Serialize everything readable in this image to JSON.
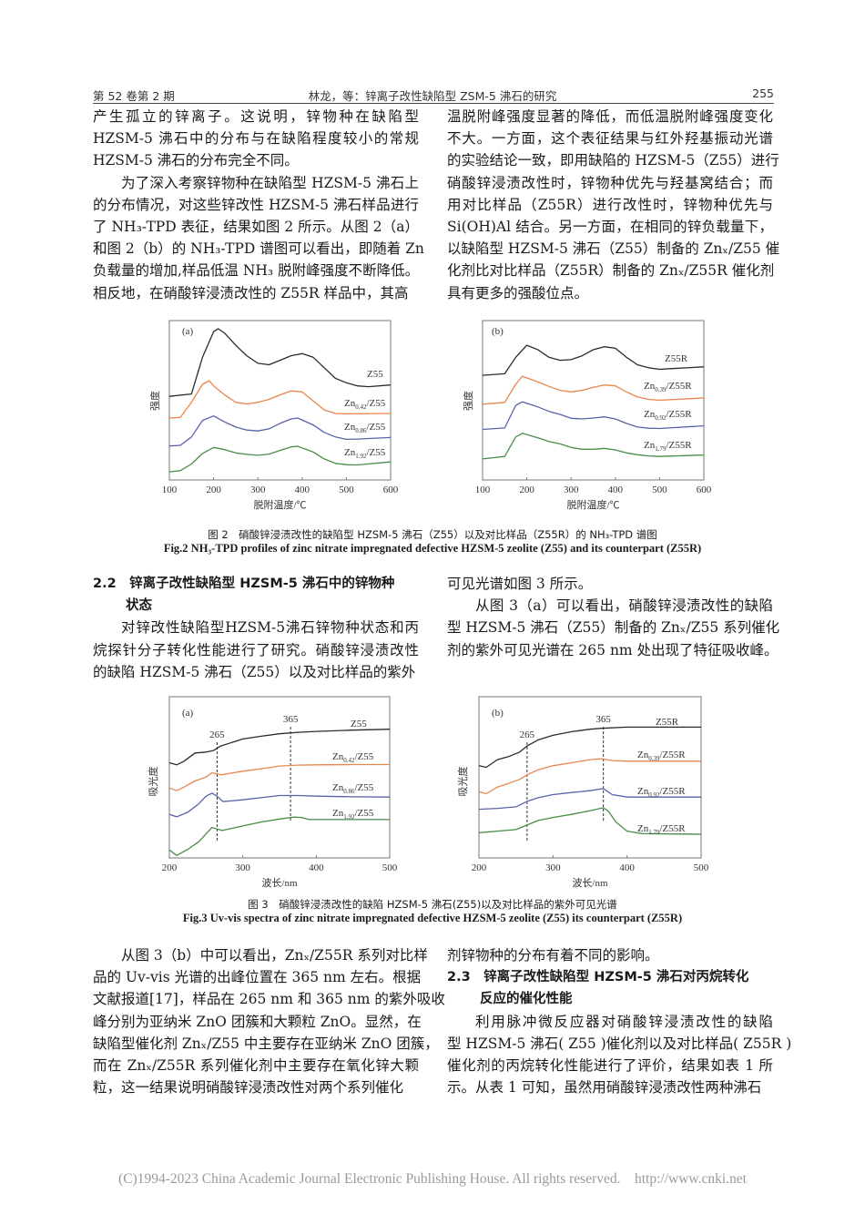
{
  "header": {
    "left": "第 52 卷第 2 期",
    "center": "林龙，等：锌离子改性缺陷型 ZSM-5 沸石的研究",
    "right": "255"
  },
  "blocks": {
    "left_top": [
      {
        "continued": true,
        "lines": [
          "产生孤立的锌离子。这说明，锌物种在缺陷型",
          "HZSM-5  沸石中的分布与在缺陷程度较小的常规",
          "HZSM-5 沸石的分布完全不同。"
        ]
      },
      {
        "continued": false,
        "lines": [
          "为了深入考察锌物种在缺陷型 HZSM-5 沸石上",
          "的分布情况，对这些锌改性 HZSM-5 沸石样品进行",
          "了 NH₃-TPD 表征，结果如图 2 所示。从图 2（a）",
          "和图 2（b）的 NH₃-TPD 谱图可以看出，即随着 Zn",
          "负载量的增加,样品低温 NH₃ 脱附峰强度不断降低。",
          "相反地，在硝酸锌浸渍改性的 Z55R 样品中，其高"
        ]
      }
    ],
    "right_top": [
      {
        "continued": true,
        "lines": [
          "温脱附峰强度显著的降低，而低温脱附峰强度变化",
          "不大。一方面，这个表征结果与红外羟基振动光谱",
          "的实验结论一致，即用缺陷的 HZSM-5（Z55）进行",
          "硝酸锌浸渍改性时，锌物种优先与羟基窝结合；而",
          "用对比样品（Z55R）进行改性时，锌物种优先与",
          "Si(OH)Al 结合。另一方面，在相同的锌负载量下，",
          "以缺陷型 HZSM-5 沸石（Z55）制备的 Znₓ/Z55 催",
          "化剂比对比样品（Z55R）制备的 Znₓ/Z55R 催化剂",
          "具有更多的强酸位点。"
        ]
      }
    ],
    "left_mid": [
      {
        "heading": [
          "2.2　锌离子改性缺陷型 HZSM-5 沸石中的锌物种",
          "状态"
        ]
      },
      {
        "continued": false,
        "lines": [
          "对锌改性缺陷型HZSM-5沸石锌物种状态和丙",
          "烷探针分子转化性能进行了研究。硝酸锌浸渍改性",
          "的缺陷 HZSM-5 沸石（Z55）以及对比样品的紫外"
        ]
      }
    ],
    "right_mid": [
      {
        "continued": true,
        "lines": [
          "可见光谱如图 3 所示。"
        ]
      },
      {
        "continued": false,
        "lines": [
          "从图 3（a）可以看出，硝酸锌浸渍改性的缺陷",
          "型 HZSM-5 沸石（Z55）制备的 Znₓ/Z55 系列催化",
          "剂的紫外可见光谱在 265 nm 处出现了特征吸收峰。"
        ]
      }
    ],
    "left_bottom": [
      {
        "continued": false,
        "lines": [
          "从图 3（b）中可以看出，Znₓ/Z55R 系列对比样",
          "品的 Uv-vis 光谱的出峰位置在 365  nm 左右。根据",
          "文献报道[17]，样品在 265 nm 和 365 nm 的紫外吸收",
          "峰分别为亚纳米 ZnO 团簇和大颗粒 ZnO。显然，在",
          "缺陷型催化剂 Znₓ/Z55 中主要存在亚纳米 ZnO 团簇，",
          "而在  Znₓ/Z55R  系列催化剂中主要存在氧化锌大颗",
          "粒，这一结果说明硝酸锌浸渍改性对两个系列催化"
        ]
      }
    ],
    "right_bottom": [
      {
        "continued": true,
        "lines": [
          "剂锌物种的分布有着不同的影响。"
        ]
      },
      {
        "heading": [
          "2.3　锌离子改性缺陷型 HZSM-5 沸石对丙烷转化",
          "反应的催化性能"
        ]
      },
      {
        "continued": false,
        "lines": [
          "利用脉冲微反应器对硝酸锌浸渍改性的缺陷",
          "型 HZSM-5 沸石( Z55 )催化剂以及对比样品( Z55R )",
          "催化剂的丙烷转化性能进行了评价，结果如表 1 所",
          "示。从表 1 可知，虽然用硝酸锌浸渍改性两种沸石"
        ]
      }
    ]
  },
  "captions": {
    "fig2_cn": "图 2　硝酸锌浸渍改性的缺陷型 HZSM-5 沸石（Z55）以及对比样品（Z55R）的 NH₃-TPD 谱图",
    "fig2_en": "Fig.2 NH₃-TPD profiles of zinc nitrate impregnated defective HZSM-5 zeolite (Z55) and its counterpart (Z55R)",
    "fig3_cn": "图 3　硝酸锌浸渍改性的缺陷 HZSM-5 沸石(Z55)以及对比样品的紫外可见光谱",
    "fig3_en": "Fig.3 Uv-vis spectra of zinc nitrate impregnated defective HZSM-5 zeolite (Z55) its counterpart (Z55R)"
  },
  "chart_data": [
    {
      "id": "fig2a",
      "type": "line",
      "panel": "(a)",
      "xlabel": "脱附温度/℃",
      "ylabel": "强度",
      "xlim": [
        100,
        600
      ],
      "ylim": [
        0,
        530
      ],
      "xticks": [
        "100",
        "200",
        "300",
        "400",
        "500",
        "600"
      ],
      "grid": false,
      "series": [
        {
          "name": "Z55",
          "label": {
            "base": "Z55",
            "sub": "",
            "rest": ""
          },
          "color": "#2b2b2b",
          "x": [
            100,
            150,
            175,
            200,
            210,
            225,
            250,
            275,
            300,
            325,
            350,
            375,
            400,
            425,
            450,
            475,
            500,
            525,
            550,
            600
          ],
          "y": [
            278,
            286,
            408,
            493,
            503,
            488,
            448,
            413,
            388,
            383,
            398,
            413,
            420,
            408,
            373,
            338,
            323,
            313,
            310,
            316
          ]
        },
        {
          "name": "Zn0.42/Z55",
          "label": {
            "base": "Zn",
            "sub": "0.42",
            "rest": "/Z55"
          },
          "color": "#e8864c",
          "x": [
            100,
            125,
            150,
            175,
            190,
            200,
            225,
            250,
            275,
            300,
            325,
            350,
            375,
            400,
            425,
            450,
            475,
            500,
            600
          ],
          "y": [
            206,
            208,
            258,
            318,
            330,
            313,
            283,
            258,
            253,
            258,
            268,
            283,
            296,
            293,
            263,
            233,
            221,
            220,
            221
          ]
        },
        {
          "name": "Zn0.86/Z55",
          "label": {
            "base": "Zn",
            "sub": "0.86",
            "rest": "/Z55"
          },
          "color": "#5862a8",
          "x": [
            100,
            125,
            150,
            175,
            200,
            225,
            250,
            275,
            300,
            325,
            350,
            375,
            390,
            425,
            450,
            475,
            500,
            525,
            600
          ],
          "y": [
            113,
            115,
            143,
            198,
            213,
            193,
            176,
            166,
            163,
            170,
            188,
            203,
            206,
            183,
            158,
            143,
            135,
            136,
            141
          ]
        },
        {
          "name": "Zn1.92/Z55",
          "label": {
            "base": "Zn",
            "sub": "1.92",
            "rest": "/Z55"
          },
          "color": "#4a8c4a",
          "x": [
            100,
            125,
            150,
            175,
            200,
            225,
            250,
            275,
            300,
            325,
            350,
            375,
            390,
            425,
            450,
            475,
            500,
            525,
            600
          ],
          "y": [
            27,
            31,
            53,
            88,
            108,
            101,
            90,
            85,
            82,
            86,
            98,
            110,
            112,
            93,
            70,
            55,
            51,
            50,
            60
          ]
        }
      ]
    },
    {
      "id": "fig2b",
      "type": "line",
      "panel": "(b)",
      "xlabel": "脱附温度/℃",
      "ylabel": "强度",
      "xlim": [
        100,
        600
      ],
      "ylim": [
        0,
        530
      ],
      "xticks": [
        "100",
        "200",
        "300",
        "400",
        "500",
        "600"
      ],
      "grid": false,
      "series": [
        {
          "name": "Z55R",
          "label": {
            "base": "Z55R",
            "sub": "",
            "rest": ""
          },
          "color": "#2b2b2b",
          "x": [
            100,
            150,
            175,
            200,
            225,
            250,
            275,
            300,
            325,
            350,
            375,
            400,
            425,
            450,
            475,
            500,
            525,
            600
          ],
          "y": [
            348,
            353,
            408,
            448,
            433,
            408,
            398,
            400,
            413,
            433,
            443,
            438,
            408,
            383,
            373,
            368,
            370,
            376
          ]
        },
        {
          "name": "Zn0.39/Z55R",
          "label": {
            "base": "Zn",
            "sub": "0.39",
            "rest": "/Z55R"
          },
          "color": "#e8864c",
          "x": [
            100,
            150,
            175,
            190,
            225,
            250,
            275,
            300,
            325,
            350,
            375,
            400,
            425,
            450,
            475,
            500,
            600
          ],
          "y": [
            252,
            258,
            318,
            345,
            326,
            311,
            298,
            293,
            298,
            308,
            316,
            313,
            293,
            276,
            268,
            265,
            273
          ]
        },
        {
          "name": "Zn0.92/Z55R",
          "label": {
            "base": "Zn",
            "sub": "0.92",
            "rest": "/Z55R"
          },
          "color": "#5862a8",
          "x": [
            100,
            150,
            175,
            190,
            225,
            250,
            275,
            300,
            325,
            350,
            375,
            400,
            425,
            450,
            475,
            500,
            600
          ],
          "y": [
            168,
            173,
            248,
            260,
            243,
            228,
            218,
            205,
            203,
            206,
            210,
            203,
            188,
            176,
            172,
            171,
            180
          ]
        },
        {
          "name": "Zn1.79/Z55R",
          "label": {
            "base": "Zn",
            "sub": "1.79",
            "rest": "/Z55R"
          },
          "color": "#4a8c4a",
          "x": [
            100,
            150,
            175,
            190,
            225,
            250,
            275,
            300,
            325,
            350,
            375,
            400,
            425,
            450,
            475,
            500,
            600
          ],
          "y": [
            70,
            78,
            143,
            155,
            140,
            128,
            120,
            108,
            102,
            102,
            105,
            100,
            90,
            84,
            80,
            78,
            83
          ]
        }
      ]
    },
    {
      "id": "fig3a",
      "type": "line",
      "panel": "(a)",
      "xlabel": "波长/nm",
      "ylabel": "吸光度",
      "xlim": [
        200,
        500
      ],
      "ylim": [
        0,
        530
      ],
      "xticks": [
        "200",
        "300",
        "400",
        "500"
      ],
      "grid": false,
      "marker_lines": [
        {
          "x": 265,
          "label": "265"
        },
        {
          "x": 365,
          "label": "365"
        }
      ],
      "series": [
        {
          "name": "Z55",
          "label": {
            "base": "Z55",
            "sub": "",
            "rest": ""
          },
          "color": "#2b2b2b",
          "x": [
            200,
            210,
            220,
            235,
            250,
            260,
            270,
            300,
            325,
            350,
            375,
            400,
            450,
            500
          ],
          "y": [
            313,
            306,
            318,
            345,
            348,
            353,
            368,
            391,
            400,
            408,
            413,
            416,
            420,
            423
          ]
        },
        {
          "name": "Zn0.42/Z55",
          "label": {
            "base": "Zn",
            "sub": "0.42",
            "rest": "/Z55"
          },
          "color": "#e8864c",
          "x": [
            200,
            210,
            220,
            235,
            250,
            258,
            270,
            300,
            325,
            350,
            375,
            400,
            450,
            500
          ],
          "y": [
            230,
            221,
            233,
            253,
            266,
            280,
            273,
            285,
            293,
            302,
            305,
            306,
            307,
            307
          ]
        },
        {
          "name": "Zn0.86/Z55",
          "label": {
            "base": "Zn",
            "sub": "0.86",
            "rest": "/Z55"
          },
          "color": "#5862a8",
          "x": [
            200,
            210,
            225,
            240,
            250,
            258,
            265,
            273,
            300,
            325,
            350,
            375,
            400,
            450,
            500
          ],
          "y": [
            143,
            135,
            150,
            178,
            203,
            213,
            203,
            185,
            191,
            198,
            205,
            205,
            203,
            201,
            200
          ]
        },
        {
          "name": "Zn1.92/Z55",
          "label": {
            "base": "Zn",
            "sub": "1.92",
            "rest": "/Z55"
          },
          "color": "#4a8c4a",
          "x": [
            200,
            210,
            225,
            240,
            258,
            272,
            300,
            325,
            350,
            370,
            380,
            390,
            400,
            450,
            500
          ],
          "y": [
            26,
            8,
            28,
            53,
            100,
            90,
            105,
            118,
            128,
            134,
            133,
            126,
            126,
            126,
            126
          ]
        }
      ]
    },
    {
      "id": "fig3b",
      "type": "line",
      "panel": "(b)",
      "xlabel": "波长/nm",
      "ylabel": "吸光度",
      "xlim": [
        200,
        500
      ],
      "ylim": [
        0,
        530
      ],
      "xticks": [
        "200",
        "300",
        "400",
        "500"
      ],
      "grid": false,
      "marker_lines": [
        {
          "x": 265,
          "label": "265"
        },
        {
          "x": 368,
          "label": "365"
        }
      ],
      "series": [
        {
          "name": "Z55R",
          "label": {
            "base": "Z55R",
            "sub": "",
            "rest": ""
          },
          "color": "#2b2b2b",
          "x": [
            200,
            210,
            225,
            240,
            255,
            265,
            280,
            300,
            325,
            350,
            365,
            400,
            500
          ],
          "y": [
            303,
            298,
            323,
            333,
            348,
            368,
            388,
            403,
            415,
            423,
            426,
            430,
            430
          ]
        },
        {
          "name": "Zn0.39/Z55R",
          "label": {
            "base": "Zn",
            "sub": "0.39",
            "rest": "/Z55R"
          },
          "color": "#e8864c",
          "x": [
            200,
            210,
            225,
            240,
            255,
            265,
            280,
            300,
            325,
            350,
            365,
            380,
            400,
            500
          ],
          "y": [
            218,
            211,
            233,
            245,
            258,
            273,
            290,
            303,
            313,
            323,
            326,
            320,
            318,
            318
          ]
        },
        {
          "name": "Zn0.92/Z55R",
          "label": {
            "base": "Zn",
            "sub": "0.92",
            "rest": "/Z55R"
          },
          "color": "#5862a8",
          "x": [
            200,
            225,
            250,
            265,
            280,
            300,
            325,
            350,
            368,
            380,
            400,
            500
          ],
          "y": [
            160,
            163,
            168,
            186,
            198,
            208,
            215,
            221,
            228,
            208,
            200,
            200
          ]
        },
        {
          "name": "Zn1.79/Z55R",
          "label": {
            "base": "Zn",
            "sub": "1.79",
            "rest": "/Z55R"
          },
          "color": "#4a8c4a",
          "x": [
            200,
            225,
            250,
            265,
            280,
            300,
            325,
            350,
            368,
            375,
            385,
            400,
            420,
            500
          ],
          "y": [
            83,
            88,
            93,
            108,
            123,
            133,
            143,
            155,
            165,
            153,
            118,
            88,
            80,
            78
          ]
        }
      ]
    }
  ],
  "footer": "(C)1994-2023 China Academic Journal Electronic Publishing House. All rights reserved.    http://www.cnki.net"
}
